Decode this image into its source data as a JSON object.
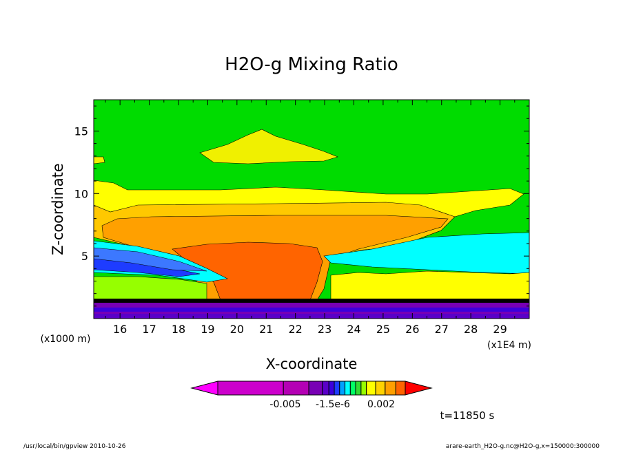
{
  "chart_data": {
    "type": "heatmap",
    "title": "H2O-g Mixing Ratio",
    "xlabel": "X-coordinate",
    "ylabel": "Z-coordinate",
    "x_unit_label": "(x1E4 m)",
    "y_unit_label": "(x1000 m)",
    "x_ticks": [
      "16",
      "17",
      "18",
      "19",
      "20",
      "21",
      "22",
      "23",
      "24",
      "25",
      "26",
      "27",
      "28",
      "29"
    ],
    "y_ticks": [
      "5",
      "10",
      "15"
    ],
    "xlim": [
      15.1,
      30.0
    ],
    "ylim": [
      0,
      17.5
    ],
    "grid": false,
    "colorbar": {
      "tick_labels": [
        "-0.005",
        "-1.5e-6",
        "0.002"
      ],
      "colors": [
        "#ff00ff",
        "#cc00cc",
        "#b400b4",
        "#7800b4",
        "#5a00c8",
        "#3c00dc",
        "#1e3cff",
        "#00a0ff",
        "#00ffff",
        "#00ff64",
        "#32dc32",
        "#96ff00",
        "#ffff00",
        "#ffd200",
        "#ffa000",
        "#ff6400",
        "#ff0000"
      ]
    },
    "regions": [
      {
        "level": "background",
        "color": "#00dc00"
      },
      {
        "level": "upper-yellow",
        "color": "#f0f000"
      },
      {
        "level": "layer-yellow",
        "color": "#ffff00"
      },
      {
        "level": "layer-gold",
        "color": "#ffc800"
      },
      {
        "level": "core-orange",
        "color": "#ffa000"
      },
      {
        "level": "core-deep-orange",
        "color": "#ff6400"
      },
      {
        "level": "cyan-band",
        "color": "#00ffff"
      },
      {
        "level": "blue-band",
        "color": "#1e3cff"
      },
      {
        "level": "surface-purple",
        "color": "#7800b4"
      }
    ]
  },
  "annotations": {
    "time": "t=11850 s",
    "footer_left": "/usr/local/bin/gpview   2010-10-26",
    "footer_right": "arare-earth_H2O-g.nc@H2O-g,x=150000:300000"
  }
}
